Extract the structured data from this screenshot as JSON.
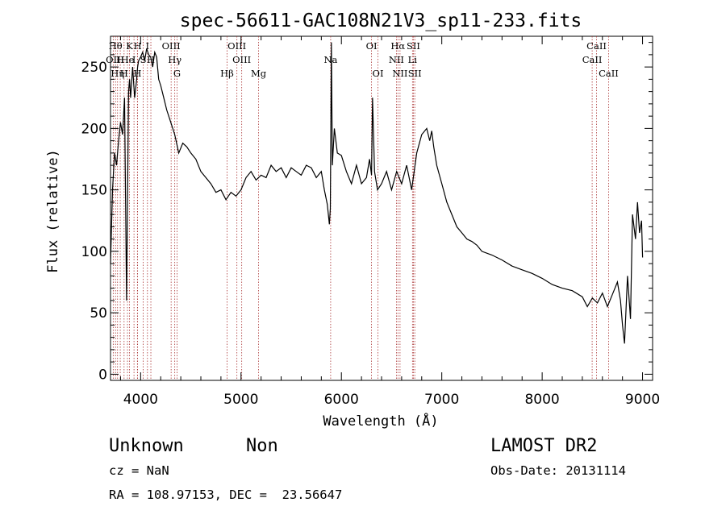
{
  "chart_data": {
    "type": "line",
    "title": "spec-56611-GAC108N21V3_sp11-233.fits",
    "xlabel": "Wavelength (Å)",
    "ylabel": "Flux (relative)",
    "xlim": [
      3700,
      9100
    ],
    "ylim": [
      -5,
      275
    ],
    "x_ticks": [
      4000,
      5000,
      6000,
      7000,
      8000,
      9000
    ],
    "y_ticks": [
      0,
      50,
      100,
      150,
      200,
      250
    ],
    "grid": false,
    "series": [
      {
        "x": [
          3700,
          3720,
          3740,
          3760,
          3780,
          3800,
          3820,
          3840,
          3860,
          3880,
          3890,
          3900,
          3920,
          3940,
          3960,
          3970,
          3980,
          4000,
          4020,
          4040,
          4060,
          4080,
          4100,
          4120,
          4140,
          4160,
          4180,
          4200,
          4230,
          4260,
          4300,
          4340,
          4380,
          4420,
          4460,
          4500,
          4550,
          4600,
          4650,
          4700,
          4750,
          4800,
          4850,
          4900,
          4950,
          5000,
          5050,
          5100,
          5150,
          5200,
          5250,
          5300,
          5350,
          5400,
          5450,
          5500,
          5550,
          5600,
          5650,
          5700,
          5750,
          5800,
          5830,
          5860,
          5880,
          5890,
          5900,
          5910,
          5930,
          5960,
          6000,
          6050,
          6100,
          6150,
          6200,
          6250,
          6280,
          6300,
          6310,
          6330,
          6360,
          6400,
          6450,
          6500,
          6550,
          6600,
          6650,
          6700,
          6750,
          6800,
          6850,
          6880,
          6900,
          6920,
          6950,
          7000,
          7050,
          7100,
          7150,
          7200,
          7250,
          7300,
          7350,
          7400,
          7500,
          7600,
          7700,
          7800,
          7900,
          8000,
          8100,
          8200,
          8300,
          8400,
          8450,
          8500,
          8550,
          8600,
          8650,
          8700,
          8750,
          8780,
          8800,
          8820,
          8850,
          8880,
          8900,
          8930,
          8950,
          8970,
          8990,
          9000
        ],
        "y": [
          90,
          150,
          180,
          170,
          190,
          205,
          195,
          225,
          60,
          230,
          240,
          225,
          250,
          225,
          240,
          250,
          255,
          258,
          262,
          255,
          265,
          260,
          258,
          250,
          262,
          258,
          240,
          235,
          225,
          215,
          205,
          195,
          180,
          188,
          185,
          180,
          175,
          165,
          160,
          155,
          148,
          150,
          142,
          148,
          145,
          150,
          160,
          165,
          158,
          162,
          160,
          170,
          165,
          168,
          160,
          168,
          165,
          162,
          170,
          168,
          160,
          165,
          150,
          138,
          122,
          135,
          270,
          170,
          200,
          180,
          178,
          165,
          155,
          170,
          155,
          160,
          175,
          162,
          225,
          165,
          150,
          155,
          165,
          150,
          165,
          155,
          170,
          150,
          180,
          195,
          200,
          190,
          198,
          185,
          170,
          155,
          140,
          130,
          120,
          115,
          110,
          108,
          105,
          100,
          97,
          93,
          88,
          85,
          82,
          78,
          73,
          70,
          68,
          63,
          55,
          62,
          58,
          66,
          55,
          65,
          75,
          60,
          40,
          25,
          80,
          45,
          130,
          110,
          140,
          115,
          125,
          95
        ]
      }
    ],
    "emission_lines": [
      {
        "wl": 3727,
        "label": "OII",
        "row": 2
      },
      {
        "wl": 3750,
        "label": "Hθ",
        "row": 1
      },
      {
        "wl": 3770,
        "label": "Hη",
        "row": 3
      },
      {
        "wl": 3797,
        "label": "H",
        "row": 2
      },
      {
        "wl": 3835,
        "label": "H",
        "row": 3
      },
      {
        "wl": 3869,
        "label": "He",
        "row": 2
      },
      {
        "wl": 3889,
        "label": "K",
        "row": 1
      },
      {
        "wl": 3934,
        "label": "I",
        "row": 2
      },
      {
        "wl": 3968,
        "label": "H",
        "row": 3
      },
      {
        "wl": 3970,
        "label": "H",
        "row": 1
      },
      {
        "wl": 4026,
        "label": "S",
        "row": 2
      },
      {
        "wl": 4068,
        "label": "I",
        "row": 1
      },
      {
        "wl": 4102,
        "label": "H",
        "row": 2
      },
      {
        "wl": 4304,
        "label": "OIII",
        "row": 1
      },
      {
        "wl": 4340,
        "label": "Hγ",
        "row": 2
      },
      {
        "wl": 4363,
        "label": "G",
        "row": 3
      },
      {
        "wl": 4861,
        "label": "Hβ",
        "row": 3
      },
      {
        "wl": 4959,
        "label": "OIII",
        "row": 1
      },
      {
        "wl": 5007,
        "label": "OIII",
        "row": 2
      },
      {
        "wl": 5175,
        "label": "Mg",
        "row": 3
      },
      {
        "wl": 5893,
        "label": "Na",
        "row": 2
      },
      {
        "wl": 6300,
        "label": "OI",
        "row": 1
      },
      {
        "wl": 6364,
        "label": "OI",
        "row": 3
      },
      {
        "wl": 6548,
        "label": "NII",
        "row": 2
      },
      {
        "wl": 6563,
        "label": "Hα",
        "row": 1
      },
      {
        "wl": 6584,
        "label": "NII",
        "row": 3
      },
      {
        "wl": 6708,
        "label": "Li",
        "row": 2
      },
      {
        "wl": 6717,
        "label": "SII",
        "row": 1
      },
      {
        "wl": 6731,
        "label": "SII",
        "row": 3
      },
      {
        "wl": 8498,
        "label": "CaII",
        "row": 2
      },
      {
        "wl": 8542,
        "label": "CaII",
        "row": 1
      },
      {
        "wl": 8662,
        "label": "CaII",
        "row": 3
      }
    ]
  },
  "info": {
    "class": "Unknown",
    "subclass": "Non",
    "survey": "LAMOST DR2",
    "cz": "cz = NaN",
    "obs_date": "Obs-Date: 20131114",
    "radec": "RA = 108.97153, DEC =  23.56647"
  }
}
